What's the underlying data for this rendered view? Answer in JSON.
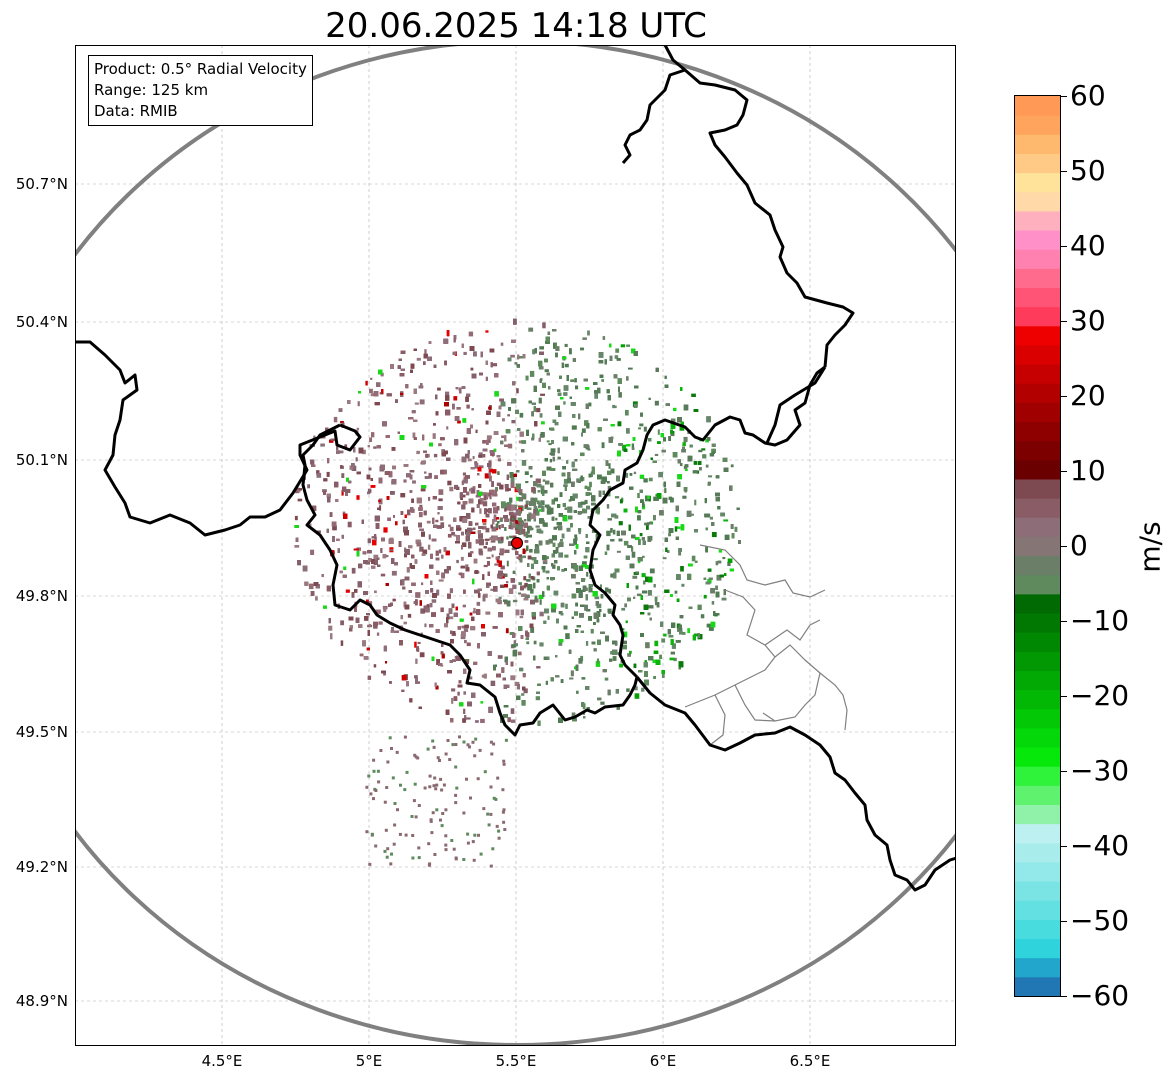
{
  "title": "20.06.2025 14:18 UTC",
  "info_box": {
    "product": "Product: 0.5° Radial Velocity",
    "range": "Range: 125 km",
    "data": "Data: RMIB"
  },
  "lat_labels": [
    "50.7°N",
    "50.4°N",
    "50.1°N",
    "49.8°N",
    "49.5°N",
    "49.2°N",
    "48.9°N"
  ],
  "lon_labels": [
    "4.5°E",
    "5°E",
    "5.5°E",
    "6°E",
    "6.5°E"
  ],
  "colorbar": {
    "label": "m/s",
    "ticks": [
      "60",
      "50",
      "40",
      "30",
      "20",
      "10",
      "0",
      "−10",
      "−20",
      "−30",
      "−40",
      "−50",
      "−60"
    ],
    "min": -60,
    "max": 60,
    "colors": [
      "#2077b4",
      "#22a6cc",
      "#2fd3dc",
      "#48dcdf",
      "#62e0e2",
      "#7ae4e5",
      "#93e8e9",
      "#a9ecec",
      "#bdf0f0",
      "#8ff2a8",
      "#5ff26f",
      "#2ff23a",
      "#06e80a",
      "#04d808",
      "#03c806",
      "#02b805",
      "#02a804",
      "#019803",
      "#018803",
      "#017802",
      "#016a02",
      "#5e8a5e",
      "#6b7e68",
      "#857575",
      "#8c6d78",
      "#8a5c66",
      "#7e4a52",
      "#6a0000",
      "#7c0000",
      "#8e0000",
      "#a00000",
      "#b20000",
      "#c60000",
      "#da0000",
      "#ee0000",
      "#ff3b5b",
      "#ff5476",
      "#ff6b8d",
      "#ff81b0",
      "#ff90c8",
      "#ffb0bf",
      "#ffd9a8",
      "#ffe39a",
      "#ffc986",
      "#ffb96f",
      "#ffa45c",
      "#ff9955"
    ]
  },
  "radar": {
    "site_lat": 49.914,
    "site_lon": 5.506,
    "range_km": 125
  },
  "map_extent": {
    "lon_min": 4.0,
    "lon_max": 7.0,
    "lat_min": 48.8,
    "lat_max": 50.99
  }
}
